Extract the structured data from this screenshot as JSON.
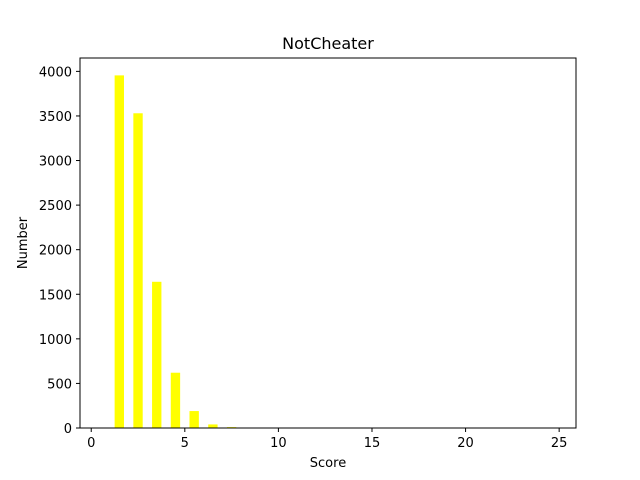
{
  "chart_data": {
    "type": "bar",
    "title": "NotCheater",
    "xlabel": "Score",
    "ylabel": "Number",
    "xlim": [
      -0.6,
      25.9
    ],
    "ylim": [
      0,
      4150
    ],
    "xticks": [
      0,
      5,
      10,
      15,
      20,
      25
    ],
    "yticks": [
      0,
      500,
      1000,
      1500,
      2000,
      2500,
      3000,
      3500,
      4000
    ],
    "bar_color": "#ffff00",
    "grid": false,
    "legend": "none",
    "series": [
      {
        "x": [
          1.5,
          2.5,
          3.5,
          4.5,
          5.5,
          6.5,
          7.5
        ],
        "values": [
          3955,
          3530,
          1640,
          620,
          190,
          40,
          10
        ]
      }
    ]
  }
}
